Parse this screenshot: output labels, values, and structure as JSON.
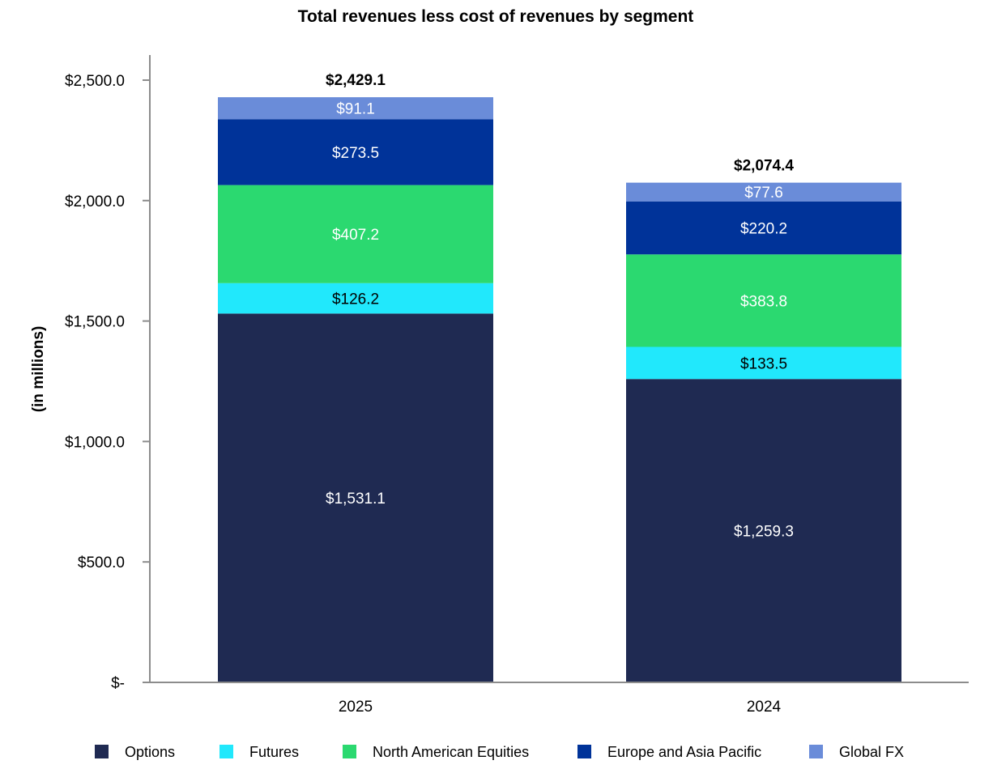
{
  "chart_data": {
    "type": "bar",
    "stacked": true,
    "title": "Total revenues less cost of revenues by segment",
    "ylabel": "(in millions)",
    "xlabel": "",
    "ylim": [
      0,
      2600
    ],
    "yticks": [
      0,
      500,
      1000,
      1500,
      2000,
      2500
    ],
    "ytick_labels": [
      "$-",
      "$500.0",
      "$1,000.0",
      "$1,500.0",
      "$2,000.0",
      "$2,500.0"
    ],
    "categories": [
      "2025",
      "2024"
    ],
    "series": [
      {
        "name": "Options",
        "color": "#1f2a52",
        "label_color": "#ffffff",
        "values": [
          1531.1,
          1259.3
        ],
        "labels": [
          "$1,531.1",
          "$1,259.3"
        ]
      },
      {
        "name": "Futures",
        "color": "#21e8fc",
        "label_color": "#000000",
        "values": [
          126.2,
          133.5
        ],
        "labels": [
          "$126.2",
          "$133.5"
        ]
      },
      {
        "name": "North American Equities",
        "color": "#2bd970",
        "label_color": "#ffffff",
        "values": [
          407.2,
          383.8
        ],
        "labels": [
          "$407.2",
          "$383.8"
        ]
      },
      {
        "name": "Europe and Asia Pacific",
        "color": "#003399",
        "label_color": "#ffffff",
        "values": [
          273.5,
          220.2
        ],
        "labels": [
          "$273.5",
          "$220.2"
        ]
      },
      {
        "name": "Global FX",
        "color": "#6a8cd9",
        "label_color": "#ffffff",
        "values": [
          91.1,
          77.6
        ],
        "labels": [
          "$91.1",
          "$77.6"
        ]
      }
    ],
    "totals": [
      2429.1,
      2074.4
    ],
    "total_labels": [
      "$2,429.1",
      "$2,074.4"
    ],
    "legend": {
      "position": "bottom"
    },
    "grid": false
  }
}
